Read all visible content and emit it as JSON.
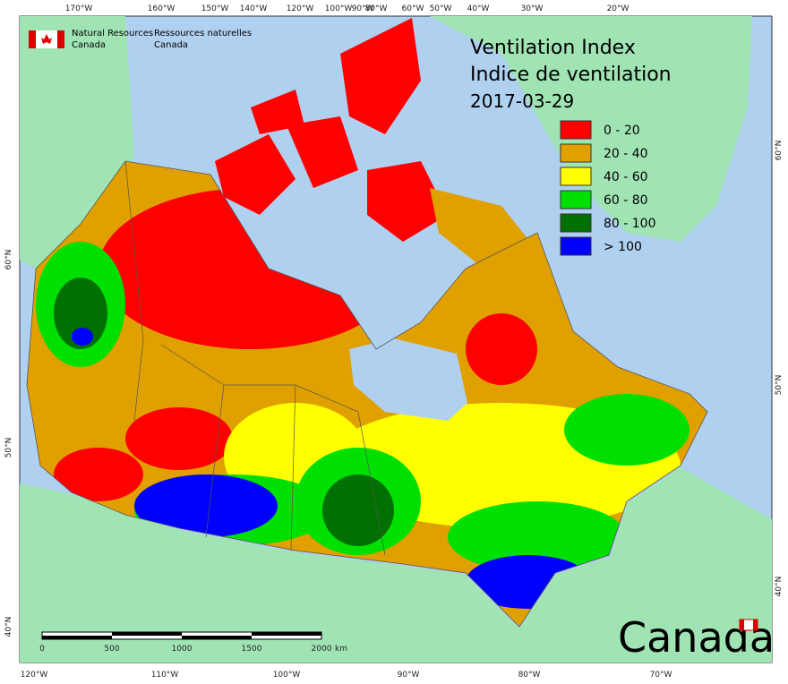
{
  "header": {
    "agency_en": [
      "Natural Resources",
      "Canada"
    ],
    "agency_fr": [
      "Ressources naturelles",
      "Canada"
    ],
    "title": [
      "Ventilation Index",
      "Indice de ventilation",
      "2017-03-29"
    ],
    "wordmark": "Canada"
  },
  "legend": {
    "items": [
      {
        "label": "0 - 20",
        "color": "#ff0000"
      },
      {
        "label": "20 - 40",
        "color": "#e0a000"
      },
      {
        "label": "40 - 60",
        "color": "#ffff00"
      },
      {
        "label": "60 - 80",
        "color": "#00e000"
      },
      {
        "label": "80 - 100",
        "color": "#007000"
      },
      {
        "label": "> 100",
        "color": "#0000ff"
      }
    ]
  },
  "graticule": {
    "top": [
      "170°W",
      "160°W",
      "150°W",
      "140°W",
      "120°W",
      "100°W",
      "90°W",
      "80°W",
      "60°W",
      "50°W",
      "40°W",
      "30°W",
      "20°W"
    ],
    "bottom": [
      "120°W",
      "110°W",
      "100°W",
      "90°W",
      "80°W",
      "70°W"
    ],
    "left": [
      "60°N",
      "50°N",
      "40°N"
    ],
    "right": [
      "60°N",
      "50°N",
      "40°N"
    ]
  },
  "scale_bar": {
    "labels": [
      "0",
      "500",
      "1000",
      "1500",
      "2000"
    ],
    "unit": "km"
  }
}
